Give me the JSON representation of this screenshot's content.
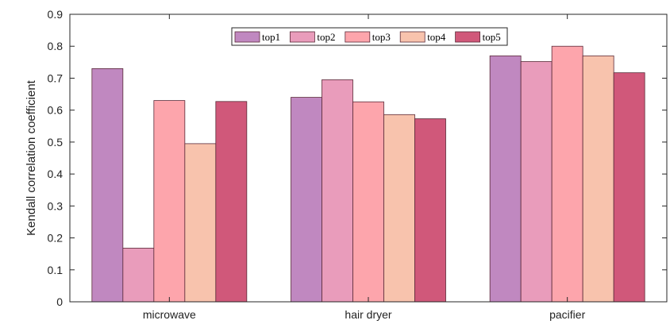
{
  "chart_data": {
    "type": "bar",
    "categories": [
      "microwave",
      "hair dryer",
      "pacifier"
    ],
    "series": [
      {
        "name": "top1",
        "color": "#c088c0",
        "values": [
          0.73,
          0.64,
          0.77
        ]
      },
      {
        "name": "top2",
        "color": "#e99cbb",
        "values": [
          0.168,
          0.695,
          0.752
        ]
      },
      {
        "name": "top3",
        "color": "#fda5ac",
        "values": [
          0.63,
          0.626,
          0.8
        ]
      },
      {
        "name": "top4",
        "color": "#f8c3ad",
        "values": [
          0.495,
          0.586,
          0.77
        ]
      },
      {
        "name": "top5",
        "color": "#d0587a",
        "values": [
          0.627,
          0.573,
          0.717
        ]
      }
    ],
    "ylabel": "Kendall correlation coefficient",
    "xlabel": "",
    "ylim": [
      0,
      0.9
    ],
    "yticks": [
      "0",
      "0.1",
      "0.2",
      "0.3",
      "0.4",
      "0.5",
      "0.6",
      "0.7",
      "0.8",
      "0.9"
    ],
    "legend_position": "top-center",
    "grid": false
  }
}
